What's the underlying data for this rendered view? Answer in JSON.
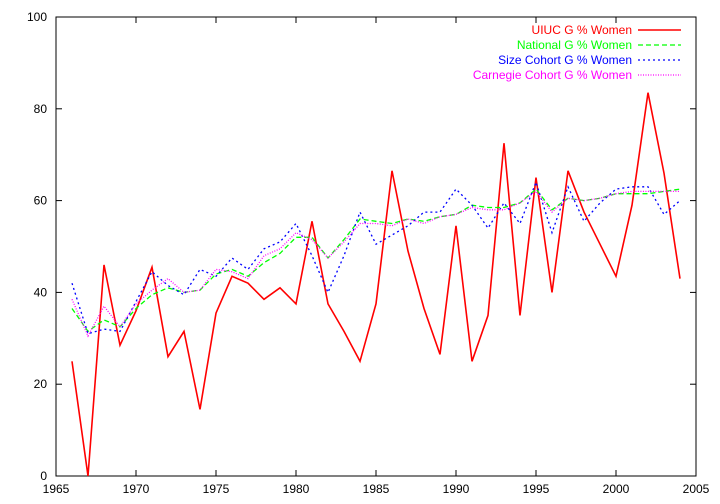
{
  "chart_data": {
    "type": "line",
    "title": "",
    "xlabel": "",
    "ylabel": "",
    "xlim": [
      1965,
      2005
    ],
    "ylim": [
      0,
      100
    ],
    "xticks": [
      1965,
      1970,
      1975,
      1980,
      1985,
      1990,
      1995,
      2000,
      2005
    ],
    "yticks": [
      0,
      20,
      40,
      60,
      80,
      100
    ],
    "grid": false,
    "legend_position": "top-right",
    "series": [
      {
        "name": "UIUC G % Women",
        "color": "#ff0000",
        "dash": "solid",
        "x": [
          1966,
          1967,
          1968,
          1969,
          1970,
          1971,
          1972,
          1973,
          1974,
          1975,
          1976,
          1977,
          1978,
          1979,
          1980,
          1981,
          1982,
          1983,
          1984,
          1985,
          1986,
          1987,
          1988,
          1989,
          1990,
          1991,
          1992,
          1993,
          1994,
          1995,
          1996,
          1997,
          1998,
          1999,
          2000,
          2001,
          2002,
          2003,
          2004
        ],
        "y": [
          25,
          0,
          46,
          28.5,
          36,
          45.5,
          26,
          31.5,
          14.5,
          35.5,
          43.5,
          42,
          38.5,
          41,
          37.5,
          55.5,
          37.5,
          31.5,
          25,
          37.5,
          66.5,
          49,
          36.5,
          26.5,
          54.5,
          25,
          35,
          72.5,
          35,
          65,
          40,
          66.5,
          57.5,
          50.5,
          43.5,
          59,
          83.5,
          66,
          43
        ]
      },
      {
        "name": "National G % Women",
        "color": "#00ff00",
        "dash": "dashed",
        "x": [
          1966,
          1967,
          1968,
          1969,
          1970,
          1971,
          1972,
          1973,
          1974,
          1975,
          1976,
          1977,
          1978,
          1979,
          1980,
          1981,
          1982,
          1983,
          1984,
          1985,
          1986,
          1987,
          1988,
          1989,
          1990,
          1991,
          1992,
          1993,
          1994,
          1995,
          1996,
          1997,
          1998,
          1999,
          2000,
          2001,
          2002,
          2003,
          2004
        ],
        "y": [
          36.5,
          31.5,
          34,
          32.5,
          36.5,
          39.5,
          41,
          40,
          40.5,
          44,
          45,
          43.5,
          46.5,
          48.5,
          52,
          52,
          47.5,
          51.5,
          56,
          55.5,
          55,
          56,
          55.5,
          56.5,
          57,
          59,
          58.5,
          58.5,
          59.5,
          62.5,
          58,
          60.5,
          60,
          60.5,
          61.5,
          61.5,
          61.5,
          62,
          62.5
        ]
      },
      {
        "name": "Size Cohort G % Women",
        "color": "#0000ff",
        "dash": "dotted",
        "x": [
          1966,
          1967,
          1968,
          1969,
          1970,
          1971,
          1972,
          1973,
          1974,
          1975,
          1976,
          1977,
          1978,
          1979,
          1980,
          1981,
          1982,
          1983,
          1984,
          1985,
          1986,
          1987,
          1988,
          1989,
          1990,
          1991,
          1992,
          1993,
          1994,
          1995,
          1996,
          1997,
          1998,
          1999,
          2000,
          2001,
          2002,
          2003,
          2004
        ],
        "y": [
          42,
          31,
          32,
          31.5,
          38,
          44.5,
          41.5,
          39.5,
          45,
          43.5,
          47.5,
          45,
          49.5,
          51,
          55,
          48,
          40,
          48,
          57.5,
          50.5,
          52.5,
          54.5,
          57.5,
          57.5,
          62.5,
          59,
          54,
          59.5,
          55,
          64,
          53,
          63,
          55.5,
          59.5,
          62.5,
          63,
          63,
          57,
          60
        ]
      },
      {
        "name": "Carnegie Cohort G % Women",
        "color": "#ff00ff",
        "dash": "finedotted",
        "x": [
          1966,
          1967,
          1968,
          1969,
          1970,
          1971,
          1972,
          1973,
          1974,
          1975,
          1976,
          1977,
          1978,
          1979,
          1980,
          1981,
          1982,
          1983,
          1984,
          1985,
          1986,
          1987,
          1988,
          1989,
          1990,
          1991,
          1992,
          1993,
          1994,
          1995,
          1996,
          1997,
          1998,
          1999,
          2000,
          2001,
          2002,
          2003,
          2004
        ],
        "y": [
          38.5,
          30.5,
          37,
          32.5,
          37.5,
          40.5,
          43,
          40,
          40.5,
          45,
          44.5,
          43,
          48,
          49.5,
          53,
          51.5,
          47.5,
          51,
          55,
          55,
          54.5,
          56,
          55,
          56.5,
          57,
          58.5,
          58,
          58,
          59.5,
          62,
          57.5,
          60.5,
          60,
          60.5,
          61.5,
          62,
          62,
          62,
          62
        ]
      }
    ]
  }
}
